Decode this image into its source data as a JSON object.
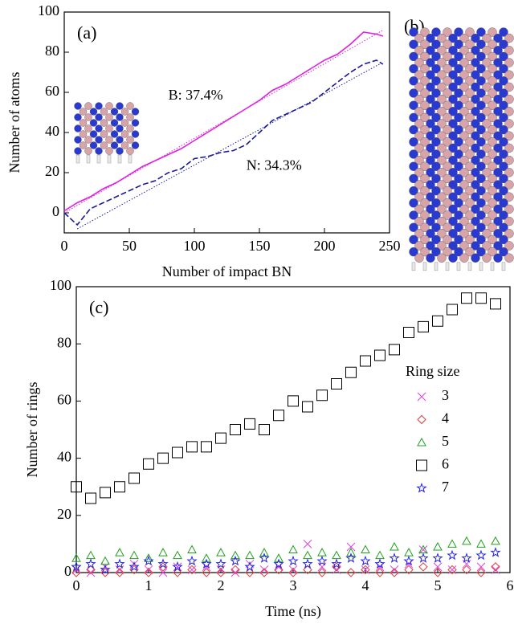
{
  "chart_data": [
    {
      "type": "line",
      "panel_label": "(a)",
      "xlabel": "Number of impact BN",
      "ylabel": "Number of atoms",
      "xlim": [
        0,
        250
      ],
      "ylim": [
        -10,
        100
      ],
      "xticks": [
        0,
        50,
        100,
        150,
        200,
        250
      ],
      "yticks": [
        0,
        20,
        40,
        60,
        80,
        100
      ],
      "annotations": [
        {
          "text": "B: 37.4%",
          "x": 80,
          "y": 58,
          "color": "#e020e0"
        },
        {
          "text": "N: 34.3%",
          "x": 140,
          "y": 23,
          "color": "#1a1a9a"
        }
      ],
      "series": [
        {
          "color": "#e020e0",
          "style": "solid",
          "x": [
            0,
            10,
            20,
            30,
            40,
            50,
            60,
            70,
            80,
            90,
            100,
            110,
            120,
            130,
            140,
            150,
            160,
            170,
            180,
            190,
            200,
            210,
            220,
            230,
            240,
            245
          ],
          "values": [
            1,
            5,
            8,
            12,
            15,
            19,
            23,
            26,
            29,
            32,
            36,
            40,
            44,
            48,
            52,
            56,
            61,
            64,
            68,
            72,
            76,
            79,
            84,
            90,
            89,
            88
          ]
        },
        {
          "color": "#1a1a9a",
          "style": "dashed",
          "x": [
            0,
            10,
            20,
            30,
            40,
            50,
            60,
            70,
            80,
            90,
            100,
            110,
            120,
            130,
            140,
            150,
            160,
            170,
            180,
            190,
            200,
            210,
            220,
            230,
            240,
            245
          ],
          "values": [
            0,
            -6,
            2,
            5,
            8,
            11,
            14,
            16,
            20,
            22,
            27,
            28,
            30,
            31,
            34,
            40,
            46,
            49,
            52,
            55,
            60,
            65,
            70,
            74,
            76,
            74
          ]
        },
        {
          "color": "#e020e0",
          "style": "dotted",
          "x": [
            0,
            245
          ],
          "values": [
            0,
            91
          ]
        },
        {
          "color": "#1a1a9a",
          "style": "dotted",
          "x": [
            10,
            245
          ],
          "values": [
            -8,
            75
          ]
        }
      ]
    },
    {
      "type": "scatter",
      "panel_label": "(c)",
      "xlabel": "Time (ns)",
      "ylabel": "Number of rings",
      "legend_title": "Ring size",
      "xlim": [
        0,
        6
      ],
      "ylim": [
        0,
        100
      ],
      "xticks": [
        0,
        1,
        2,
        3,
        4,
        5,
        6
      ],
      "yticks": [
        0,
        20,
        40,
        60,
        80,
        100
      ],
      "x": [
        0,
        0.2,
        0.4,
        0.6,
        0.8,
        1,
        1.2,
        1.4,
        1.6,
        1.8,
        2,
        2.2,
        2.4,
        2.6,
        2.8,
        3,
        3.2,
        3.4,
        3.6,
        3.8,
        4,
        4.2,
        4.4,
        4.6,
        4.8,
        5,
        5.2,
        5.4,
        5.6,
        5.8
      ],
      "series": [
        {
          "name": "3",
          "color": "#e040e0",
          "marker": "x",
          "values": [
            1,
            0,
            2,
            1,
            3,
            1,
            0,
            2,
            1,
            2,
            1,
            0,
            3,
            1,
            2,
            1,
            10,
            2,
            1,
            9,
            1,
            2,
            1,
            3,
            8,
            2,
            1,
            3,
            2,
            1
          ]
        },
        {
          "name": "4",
          "color": "#e04040",
          "marker": "diamond",
          "values": [
            0,
            1,
            0,
            0,
            1,
            0,
            2,
            0,
            1,
            0,
            0,
            1,
            0,
            0,
            1,
            0,
            1,
            0,
            2,
            0,
            1,
            0,
            0,
            1,
            2,
            0,
            1,
            1,
            0,
            2
          ]
        },
        {
          "name": "5",
          "color": "#20a020",
          "marker": "triangle",
          "values": [
            5,
            6,
            4,
            7,
            6,
            5,
            7,
            6,
            8,
            5,
            7,
            6,
            6,
            7,
            5,
            8,
            6,
            7,
            6,
            7,
            8,
            6,
            9,
            7,
            8,
            9,
            10,
            11,
            10,
            11
          ]
        },
        {
          "name": "6",
          "color": "#000000",
          "marker": "square",
          "values": [
            30,
            26,
            28,
            30,
            33,
            38,
            40,
            42,
            44,
            44,
            47,
            50,
            52,
            50,
            55,
            60,
            58,
            62,
            66,
            70,
            74,
            76,
            78,
            84,
            86,
            88,
            92,
            96,
            96,
            94
          ]
        },
        {
          "name": "7",
          "color": "#2020e0",
          "marker": "star",
          "values": [
            2,
            3,
            1,
            3,
            2,
            4,
            3,
            2,
            4,
            3,
            3,
            4,
            2,
            5,
            3,
            4,
            3,
            4,
            3,
            5,
            4,
            3,
            5,
            4,
            5,
            5,
            6,
            5,
            6,
            7
          ]
        }
      ]
    }
  ],
  "image": {
    "label": "(b)"
  }
}
